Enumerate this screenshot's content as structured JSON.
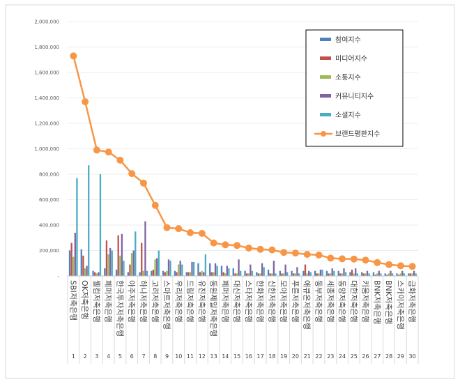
{
  "chart_data": {
    "type": "bar+line",
    "title": "",
    "xlabel": "",
    "ylabel": "",
    "ylim": [
      0,
      2000000
    ],
    "yticks": [
      "-",
      "200,000",
      "400,000",
      "600,000",
      "800,000",
      "1,000,000",
      "1,200,000",
      "1,400,000",
      "1,600,000",
      "1,800,000",
      "2,000,000"
    ],
    "categories": [
      "SBI저축은행",
      "OK저축은행",
      "웰컴저축은행",
      "페퍼저축은행",
      "한국투자저축은행",
      "아주저축은행",
      "하나저축은행",
      "고려저축은행",
      "스마트저축은행",
      "우리저축은행",
      "드림저축은행",
      "유진저축은행",
      "동원제일저축은행",
      "페퍼저축은행",
      "대신저축은행",
      "스타저축은행",
      "한화저축은행",
      "신한저축은행",
      "모아저축은행",
      "푸른저축은행",
      "애큐온저축은행",
      "동부저축은행",
      "세종저축은행",
      "동양저축은행",
      "대한저축은행",
      "키움저축은행",
      "BNK저축은행",
      "BNK저축은행",
      "스카이저축은행",
      "금화저축은행"
    ],
    "category_numbers": [
      "1",
      "2",
      "3",
      "4",
      "5",
      "6",
      "7",
      "8",
      "9",
      "10",
      "11",
      "12",
      "13",
      "14",
      "15",
      "16",
      "17",
      "18",
      "19",
      "20",
      "21",
      "22",
      "23",
      "24",
      "25",
      "26",
      "27",
      "28",
      "29",
      "30"
    ],
    "series": [
      {
        "name": "참여지수",
        "type": "bar",
        "color": "#4F81BD",
        "values": [
          200000,
          210000,
          40000,
          60000,
          50000,
          30000,
          30000,
          40000,
          40000,
          40000,
          30000,
          100000,
          100000,
          80000,
          60000,
          40000,
          30000,
          50000,
          40000,
          40000,
          40000,
          40000,
          40000,
          40000,
          30000,
          30000,
          30000,
          20000,
          20000,
          20000
        ]
      },
      {
        "name": "미디어지수",
        "type": "bar",
        "color": "#C0504D",
        "values": [
          260000,
          160000,
          30000,
          280000,
          320000,
          90000,
          260000,
          50000,
          30000,
          30000,
          30000,
          30000,
          30000,
          30000,
          20000,
          20000,
          20000,
          20000,
          20000,
          20000,
          90000,
          20000,
          20000,
          20000,
          50000,
          20000,
          10000,
          10000,
          10000,
          20000
        ]
      },
      {
        "name": "소통지수",
        "type": "bar",
        "color": "#9BBB59",
        "values": [
          150000,
          60000,
          20000,
          170000,
          160000,
          180000,
          40000,
          130000,
          40000,
          90000,
          30000,
          40000,
          30000,
          20000,
          20000,
          20000,
          20000,
          20000,
          20000,
          20000,
          20000,
          20000,
          20000,
          20000,
          20000,
          20000,
          20000,
          20000,
          20000,
          20000
        ]
      },
      {
        "name": "커뮤니티지수",
        "type": "bar",
        "color": "#8064A2",
        "values": [
          340000,
          80000,
          30000,
          220000,
          330000,
          200000,
          430000,
          140000,
          130000,
          120000,
          110000,
          30000,
          100000,
          80000,
          130000,
          90000,
          100000,
          120000,
          90000,
          70000,
          40000,
          50000,
          60000,
          60000,
          60000,
          40000,
          40000,
          40000,
          40000,
          40000
        ]
      },
      {
        "name": "소셜지수",
        "type": "bar",
        "color": "#4BACC6",
        "values": [
          770000,
          870000,
          800000,
          200000,
          120000,
          350000,
          40000,
          200000,
          120000,
          90000,
          110000,
          170000,
          80000,
          60000,
          40000,
          40000,
          70000,
          20000,
          30000,
          20000,
          30000,
          50000,
          40000,
          30000,
          20000,
          20000,
          20000,
          20000,
          20000,
          20000
        ]
      },
      {
        "name": "브랜드평판지수",
        "type": "line",
        "color": "#F79646",
        "values": [
          1730000,
          1370000,
          990000,
          975000,
          910000,
          805000,
          730000,
          555000,
          380000,
          372000,
          340000,
          335000,
          260000,
          245000,
          240000,
          220000,
          210000,
          205000,
          185000,
          180000,
          170000,
          165000,
          140000,
          135000,
          133000,
          125000,
          105000,
          90000,
          80000,
          75000
        ]
      }
    ]
  }
}
